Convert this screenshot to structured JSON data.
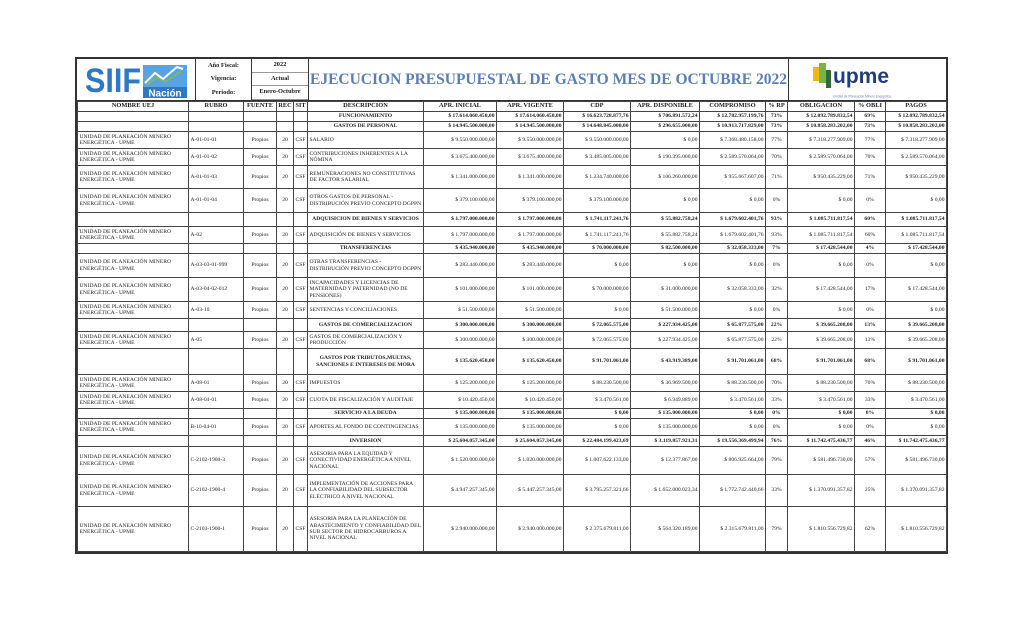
{
  "header": {
    "siif_logo": {
      "text": "SIIF",
      "sub": "Nación",
      "color": "#2f78c4"
    },
    "meta": [
      {
        "label": "Año Fiscal:",
        "value": "2022"
      },
      {
        "label": "Vigencia:",
        "value": "Actual"
      },
      {
        "label": "Periodo:",
        "value": "Enero-Octubre"
      }
    ],
    "title": "EJECUCION PRESUPUESTAL DE GASTO MES DE OCTUBRE  2022",
    "upme_logo": {
      "text": "upme",
      "sub": "Unidad de Planeación Minero Energética",
      "color": "#1f3f7a"
    }
  },
  "columns": [
    "NOMBRE UEJ",
    "RUBRO",
    "FUENTE",
    "REC",
    "SIT",
    "DESCRIPCION",
    "APR. INICIAL",
    "APR. VIGENTE",
    "CDP",
    "APR. DISPONIBLE",
    "COMPROMISO",
    "% RP",
    "OBLIGACION",
    "% OBLI",
    "PAGOS"
  ],
  "rows": [
    {
      "type": "sub",
      "cells": [
        "",
        "",
        "",
        "",
        "",
        "FUNCIONAMIENTO",
        "$ 17.614.060.450,00",
        "$ 17.614.060.450,00",
        "$ 16.623.728.877,76",
        "$ 706.891.572,24",
        "$ 12.782.957.199,76",
        "73%",
        "$ 12.092.789.832,54",
        "69%",
        "$ 12.092.789.832,54"
      ]
    },
    {
      "type": "sub",
      "cells": [
        "",
        "",
        "",
        "",
        "",
        "GASTOS DE PERSONAL",
        "$ 14.945.500.000,00",
        "$ 14.945.500.000,00",
        "$ 14.648.845.000,00",
        "$ 296.655.000,00",
        "$ 10.913.717.829,00",
        "73%",
        "$ 10.858.283.202,00",
        "73%",
        "$ 10.858.283.202,00"
      ]
    },
    {
      "type": "det",
      "cells": [
        "UNIDAD DE PLANEACIÓN MINERO ENERGÉTICA - UPME",
        "A-01-01-01",
        "Propios",
        "20",
        "CSF",
        "SALARIO",
        "$ 9.550.000.000,00",
        "$ 9.550.000.000,00",
        "$ 9.550.000.000,00",
        "$ 0,00",
        "$ 7.368.480.158,00",
        "77%",
        "$ 7.318.277.909,00",
        "77%",
        "$ 7.318.277.909,00"
      ]
    },
    {
      "type": "det",
      "cells": [
        "UNIDAD DE PLANEACIÓN MINERO ENERGÉTICA - UPME",
        "A-01-01-02",
        "Propios",
        "20",
        "CSF",
        "CONTRIBUCIONES INHERENTES A LA NÓMINA",
        "$ 3.675.400.000,00",
        "$ 3.675.400.000,00",
        "$ 3.485.005.000,00",
        "$ 190.395.000,00",
        "$ 2.589.570.064,00",
        "70%",
        "$ 2.589.570.064,00",
        "70%",
        "$ 2.589.570.064,00"
      ]
    },
    {
      "type": "det",
      "cells": [
        "UNIDAD DE PLANEACIÓN MINERO ENERGÉTICA - UPME",
        "A-01-01-03",
        "Propios",
        "20",
        "CSF",
        "REMUNERACIONES NO CONSTITUTIVAS DE FACTOR SALARIAL",
        "$ 1.341.000.000,00",
        "$ 1.341.000.000,00",
        "$ 1.234.740.000,00",
        "$ 106.260.000,00",
        "$ 955.667.607,00",
        "71%",
        "$ 950.435.229,00",
        "71%",
        "$ 950.435.229,00"
      ]
    },
    {
      "type": "det",
      "cells": [
        "UNIDAD DE PLANEACIÓN MINERO ENERGÉTICA - UPME",
        "A-01-01-04",
        "Propios",
        "20",
        "CSF",
        "OTROS GASTOS DE PERSONAL - DISTRIBUCIÓN PREVIO CONCEPTO DGPPN",
        "$ 379.100.000,00",
        "$ 379.100.000,00",
        "$ 379.100.000,00",
        "$ 0,00",
        "$ 0,00",
        "0%",
        "$ 0,00",
        "0%",
        "$ 0,00"
      ]
    },
    {
      "type": "sub",
      "cells": [
        "",
        "",
        "",
        "",
        "",
        "ADQUISICION DE BIENES Y SERVICIOS",
        "$ 1.797.000.000,00",
        "$ 1.797.000.000,00",
        "$ 1.741.117.241,76",
        "$ 55.882.758,24",
        "$ 1.679.602.401,76",
        "93%",
        "$ 1.085.711.817,54",
        "60%",
        "$ 1.085.711.817,54"
      ]
    },
    {
      "type": "det",
      "cells": [
        "UNIDAD DE PLANEACIÓN MINERO ENERGÉTICA - UPME",
        "A-02",
        "Propios",
        "20",
        "CSF",
        "ADQUISICIÓN DE BIENES  Y SERVICIOS",
        "$ 1.797.000.000,00",
        "$ 1.797.000.000,00",
        "$ 1.741.117.241,76",
        "$ 55.882.758,24",
        "$ 1.679.602.401,76",
        "93%",
        "$ 1.085.711.817,54",
        "60%",
        "$ 1.085.711.817,54"
      ]
    },
    {
      "type": "sub",
      "cells": [
        "",
        "",
        "",
        "",
        "",
        "TRANSFERENCIAS",
        "$ 435.940.000,00",
        "$ 435.940.000,00",
        "$ 70.000.000,00",
        "$ 82.500.000,00",
        "$ 32.058.333,00",
        "7%",
        "$ 17.428.544,00",
        "4%",
        "$ 17.428.544,00"
      ]
    },
    {
      "type": "det",
      "cells": [
        "UNIDAD DE PLANEACIÓN MINERO ENERGÉTICA - UPME",
        "A-03-03-01-999",
        "Propios",
        "20",
        "CSF",
        "OTRAS TRANSFERENCIAS - DISTRIBUCIÓN PREVIO CONCEPTO DGPPN",
        "$ 283.440.000,00",
        "$ 283.440.000,00",
        "$ 0,00",
        "$ 0,00",
        "$ 0,00",
        "0%",
        "$ 0,00",
        "0%",
        "$ 0,00"
      ]
    },
    {
      "type": "det",
      "cells": [
        "UNIDAD DE PLANEACIÓN MINERO ENERGÉTICA - UPME",
        "A-03-04-02-012",
        "Propios",
        "20",
        "CSF",
        "INCAPACIDADES Y LICENCIAS DE MATERNIDAD Y PATERNIDAD (NO DE PENSIONES)",
        "$ 101.000.000,00",
        "$ 101.000.000,00",
        "$ 70.000.000,00",
        "$ 31.000.000,00",
        "$ 32.058.333,00",
        "32%",
        "$ 17.428.544,00",
        "17%",
        "$ 17.428.544,00"
      ]
    },
    {
      "type": "det",
      "cells": [
        "UNIDAD DE PLANEACIÓN MINERO ENERGÉTICA - UPME",
        "A-03-10",
        "Propios",
        "20",
        "CSF",
        "SENTENCIAS Y CONCILIACIONES",
        "$ 51.500.000,00",
        "$ 51.500.000,00",
        "$ 0,00",
        "$ 51.500.000,00",
        "$ 0,00",
        "0%",
        "$ 0,00",
        "0%",
        "$ 0,00"
      ]
    },
    {
      "type": "sub",
      "cells": [
        "",
        "",
        "",
        "",
        "",
        "GASTOS DE COMERCIALIZACION",
        "$ 300.000.000,00",
        "$ 300.000.000,00",
        "$ 72.065.575,00",
        "$ 227.934.425,00",
        "$ 65.877.575,00",
        "22%",
        "$ 39.665.208,00",
        "13%",
        "$ 39.665.208,00"
      ]
    },
    {
      "type": "det",
      "cells": [
        "UNIDAD DE PLANEACIÓN MINERO ENERGÉTICA - UPME",
        "A-05",
        "Propios",
        "20",
        "CSF",
        "GASTOS DE COMERCIALIZACIÓN Y PRODUCCIÓN",
        "$ 300.000.000,00",
        "$ 300.000.000,00",
        "$ 72.065.575,00",
        "$ 227.934.425,00",
        "$ 65.877.575,00",
        "22%",
        "$ 39.665.208,00",
        "13%",
        "$ 39.665.208,00"
      ]
    },
    {
      "type": "sub",
      "cells": [
        "",
        "",
        "",
        "",
        "",
        "GASTOS POR TRIBUTOS,MULTAS, SANCIONES E INTERESES DE MORA",
        "$ 135.620.450,00",
        "$ 135.620.450,00",
        "$ 91.701.061,00",
        "$ 43.919.389,00",
        "$ 91.701.061,00",
        "68%",
        "$ 91.701.061,00",
        "68%",
        "$ 91.701.061,00"
      ]
    },
    {
      "type": "det",
      "cells": [
        "UNIDAD DE PLANEACIÓN MINERO ENERGÉTICA - UPME",
        "A-08-01",
        "Propios",
        "20",
        "CSF",
        "IMPUESTOS",
        "$ 125.200.000,00",
        "$ 125.200.000,00",
        "$ 88.230.500,00",
        "$ 36.969.500,00",
        "$ 88.230.500,00",
        "70%",
        "$ 88.230.500,00",
        "70%",
        "$ 88.230.500,00"
      ]
    },
    {
      "type": "det",
      "cells": [
        "UNIDAD DE PLANEACIÓN MINERO ENERGÉTICA - UPME",
        "A-08-04-01",
        "Propios",
        "20",
        "CSF",
        "CUOTA DE FISCALIZACIÓN Y AUDITAJE",
        "$ 10.420.450,00",
        "$ 10.420.450,00",
        "$ 3.470.561,00",
        "$ 6.949.889,00",
        "$ 3.470.561,00",
        "33%",
        "$ 3.470.561,00",
        "33%",
        "$ 3.470.561,00"
      ]
    },
    {
      "type": "sub",
      "cells": [
        "",
        "",
        "",
        "",
        "",
        "SERVICIO A LA DEUDA",
        "$ 135.000.000,00",
        "$ 135.000.000,00",
        "$ 0,00",
        "$ 135.000.000,00",
        "$ 0,00",
        "0%",
        "$ 0,00",
        "0%",
        "$ 0,00"
      ]
    },
    {
      "type": "det",
      "cells": [
        "UNIDAD DE PLANEACIÓN MINERO ENERGÉTICA - UPME",
        "B-10-04-01",
        "Propios",
        "20",
        "CSF",
        "APORTES AL FONDO DE CONTINGENCIAS",
        "$ 135.000.000,00",
        "$ 135.000.000,00",
        "$ 0,00",
        "$ 135.000.000,00",
        "$ 0,00",
        "0%",
        "$ 0,00",
        "0%",
        "$ 0,00"
      ]
    },
    {
      "type": "sub",
      "cells": [
        "",
        "",
        "",
        "",
        "",
        "INVERSION",
        "$ 25.604.057.345,00",
        "$ 25.604.057.345,00",
        "$ 22.484.199.423,69",
        "$ 3.119.857.921,31",
        "$ 19.556.369.499,94",
        "76%",
        "$ 11.742.475.436,77",
        "46%",
        "$ 11.742.475.436,77"
      ]
    },
    {
      "type": "det",
      "cells": [
        "UNIDAD DE PLANEACIÓN MINERO ENERGÉTICA - UPME",
        "C-2102-1900-3",
        "Propios",
        "20",
        "CSF",
        "ASESORIA PARA LA EQUIDAD Y CONECTIVIDAD ENERGÉTICA A NIVEL  NACIONAL",
        "$ 1.520.000.000,00",
        "$ 1.020.000.000,00",
        "$ 1.007.622.133,00",
        "$ 12.377.867,00",
        "$ 806.925.664,00",
        "79%",
        "$ 581.496.730,00",
        "57%",
        "$ 581.496.730,00"
      ]
    },
    {
      "type": "det",
      "cells": [
        "UNIDAD DE PLANEACIÓN MINERO ENERGÉTICA - UPME",
        "C-2102-1900-4",
        "Propios",
        "20",
        "CSF",
        "IMPLEMENTACIÓN DE ACCIONES PARA LA CONFIABILIDAD DEL SUBSECTOR ELÉCTRICO A NIVEL NACIONAL",
        "$ 4.947.257.345,00",
        "$ 5.447.257.345,00",
        "$ 3.795.257.321,66",
        "$ 1.652.000.023,34",
        "$ 1.772.742.440,66",
        "33%",
        "$ 1.370.091.357,82",
        "25%",
        "$ 1.370.091.357,82"
      ]
    },
    {
      "type": "det",
      "cells": [
        "UNIDAD DE PLANEACIÓN MINERO ENERGÉTICA - UPME",
        "C-2103-1900-1",
        "Propios",
        "20",
        "CSF",
        "ASESORIA PARA LA PLANEACIÓN DE ABASTECIMIENTO Y CONFIABILIDAD DEL SUB SECTOR DE HIDROCARBUROS A NIVEL NACIONAL",
        "$ 2.940.000.000,00",
        "$ 2.940.000.000,00",
        "$ 2.375.679.811,00",
        "$ 564.320.189,00",
        "$ 2.315.679.811,00",
        "79%",
        "$ 1.810.556.729,82",
        "62%",
        "$ 1.810.556.729,82"
      ]
    }
  ]
}
